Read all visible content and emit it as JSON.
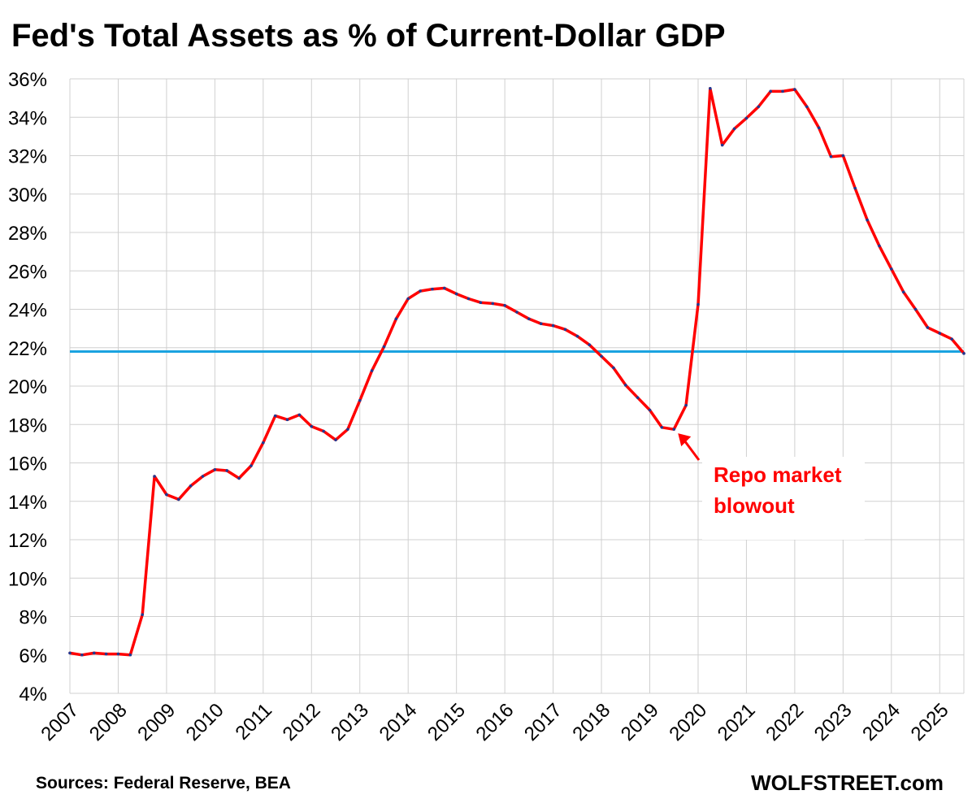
{
  "title": "Fed's Total Assets as % of Current-Dollar GDP",
  "source": "Sources: Federal Reserve, BEA",
  "brand": "WOLFSTREET.com",
  "colors": {
    "series": "#ff0000",
    "markers": "#1f3a93",
    "reference_line": "#1aa3e0",
    "grid": "#d0d0d0",
    "annotation": "#ff0000"
  },
  "chart_data": {
    "type": "line",
    "title": "Fed's Total Assets as % of Current-Dollar GDP",
    "xlabel": "",
    "ylabel": "",
    "ylim": [
      4,
      36
    ],
    "xlim": [
      2007,
      2025.5
    ],
    "grid": true,
    "y_ticks": [
      "4%",
      "6%",
      "8%",
      "10%",
      "12%",
      "14%",
      "16%",
      "18%",
      "20%",
      "22%",
      "24%",
      "26%",
      "28%",
      "30%",
      "32%",
      "34%",
      "36%"
    ],
    "x_ticks": [
      "2007",
      "2008",
      "2009",
      "2010",
      "2011",
      "2012",
      "2013",
      "2014",
      "2015",
      "2016",
      "2017",
      "2018",
      "2019",
      "2020",
      "2021",
      "2022",
      "2023",
      "2024",
      "2025"
    ],
    "reference_line": {
      "y": 21.8
    },
    "series": [
      {
        "x": [
          2007.0,
          2007.25,
          2007.5,
          2007.75,
          2008.0,
          2008.25,
          2008.5,
          2008.75,
          2009.0,
          2009.25,
          2009.5,
          2009.75,
          2010.0,
          2010.25,
          2010.5,
          2010.75,
          2011.0,
          2011.25,
          2011.5,
          2011.75,
          2012.0,
          2012.25,
          2012.5,
          2012.75,
          2013.0,
          2013.25,
          2013.5,
          2013.75,
          2014.0,
          2014.25,
          2014.5,
          2014.75,
          2015.0,
          2015.25,
          2015.5,
          2015.75,
          2016.0,
          2016.25,
          2016.5,
          2016.75,
          2017.0,
          2017.25,
          2017.5,
          2017.75,
          2018.0,
          2018.25,
          2018.5,
          2018.75,
          2019.0,
          2019.25,
          2019.5,
          2019.75,
          2020.0,
          2020.25,
          2020.5,
          2020.75,
          2021.0,
          2021.25,
          2021.5,
          2021.75,
          2022.0,
          2022.25,
          2022.5,
          2022.75,
          2023.0,
          2023.25,
          2023.5,
          2023.75,
          2024.0,
          2024.25,
          2024.5,
          2024.75,
          2025.0,
          2025.25,
          2025.5
        ],
        "values": [
          6.1,
          6.0,
          6.1,
          6.05,
          6.05,
          6.0,
          8.1,
          15.3,
          14.35,
          14.1,
          14.8,
          15.3,
          15.65,
          15.6,
          15.2,
          15.85,
          17.05,
          18.45,
          18.25,
          18.5,
          17.9,
          17.65,
          17.2,
          17.75,
          19.25,
          20.8,
          22.05,
          23.5,
          24.55,
          24.95,
          25.05,
          25.1,
          24.8,
          24.55,
          24.35,
          24.3,
          24.2,
          23.85,
          23.5,
          23.25,
          23.15,
          22.95,
          22.6,
          22.15,
          21.55,
          20.95,
          20.05,
          19.4,
          18.75,
          17.85,
          17.75,
          19.0,
          24.25,
          35.5,
          32.55,
          33.4,
          33.95,
          34.55,
          35.35,
          35.35,
          35.45,
          34.55,
          33.45,
          31.95,
          32.0,
          30.3,
          28.65,
          27.3,
          26.1,
          24.9,
          24.0,
          23.05,
          22.75,
          22.45,
          21.7
        ]
      }
    ],
    "annotations": [
      {
        "line1": "Repo market",
        "line2": "blowout",
        "points_to": {
          "x": 2019.5,
          "y": 17.75
        }
      }
    ]
  }
}
